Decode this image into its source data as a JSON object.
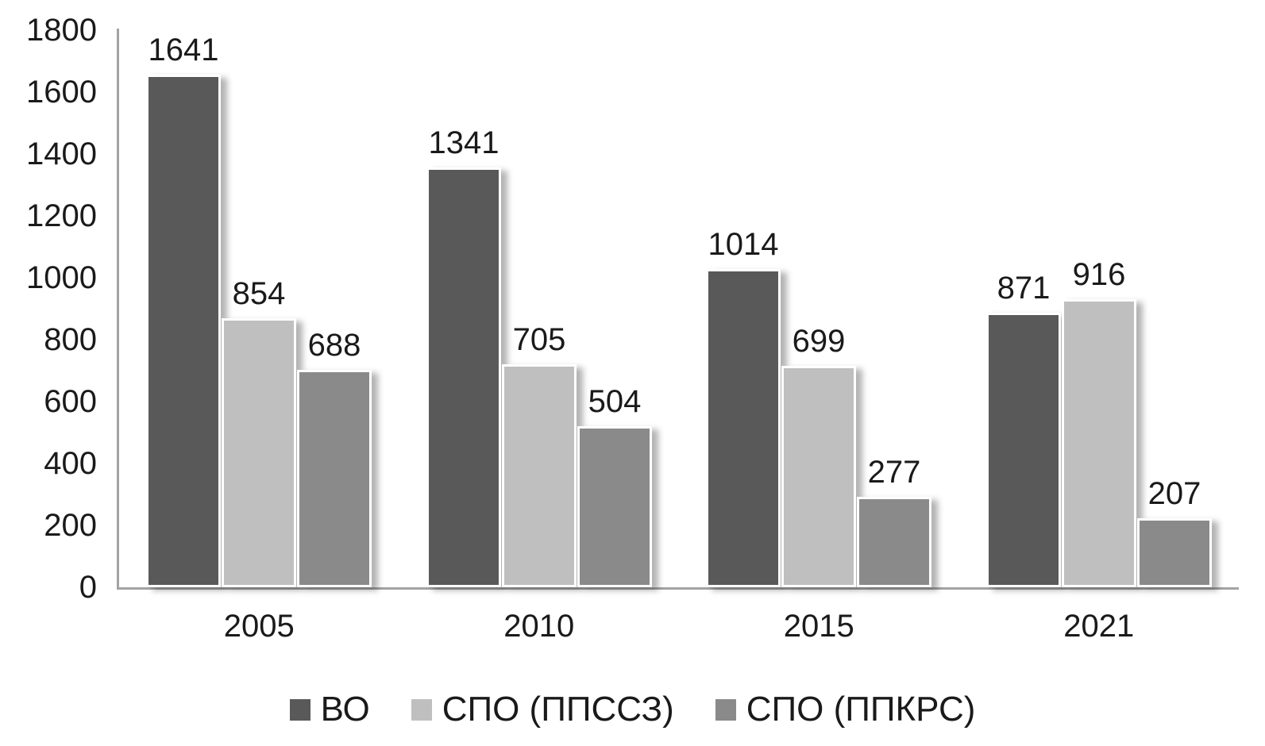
{
  "chart_data": {
    "type": "bar",
    "title": "",
    "xlabel": "",
    "ylabel": "",
    "categories": [
      "2005",
      "2010",
      "2015",
      "2021"
    ],
    "series": [
      {
        "name": "ВО",
        "color": "#595959",
        "values": [
          1641,
          1341,
          1014,
          871
        ]
      },
      {
        "name": "СПО (ППССЗ)",
        "color": "#bfbfbf",
        "values": [
          854,
          705,
          699,
          916
        ]
      },
      {
        "name": "СПО (ППКРС)",
        "color": "#8a8a8a",
        "values": [
          688,
          504,
          277,
          207
        ]
      }
    ],
    "ylim": [
      0,
      1800
    ],
    "yticks": [
      0,
      200,
      400,
      600,
      800,
      1000,
      1200,
      1400,
      1600,
      1800
    ],
    "grid": false,
    "value_labels": true,
    "legend_position": "bottom",
    "axis_color": "#a3a3a3",
    "text_color": "#1a1a1a",
    "background": "#ffffff"
  }
}
